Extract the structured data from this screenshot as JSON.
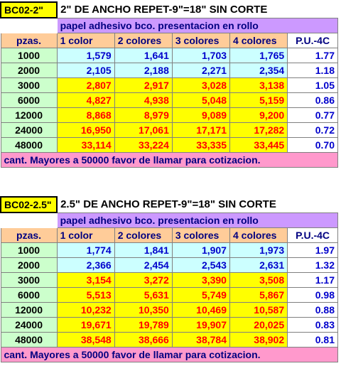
{
  "tables": [
    {
      "code": "BC02-2\"",
      "title": "2\" DE ANCHO REPET-9\"=18\" SIN CORTE",
      "subtitle": "papel adhesivo bco. presentacion en rollo",
      "headers": [
        "pzas.",
        "1  color",
        "2 colores",
        "3 colores",
        "4 colores",
        "P.U.-4C"
      ],
      "rows": [
        {
          "qty": "1000",
          "c1": "1,579",
          "c2": "1,641",
          "c3": "1,703",
          "c4": "1,765",
          "pu": "1.77",
          "tone": "blue"
        },
        {
          "qty": "2000",
          "c1": "2,105",
          "c2": "2,188",
          "c3": "2,271",
          "c4": "2,354",
          "pu": "1.18",
          "tone": "blue"
        },
        {
          "qty": "3000",
          "c1": "2,807",
          "c2": "2,917",
          "c3": "3,028",
          "c4": "3,138",
          "pu": "1.05",
          "tone": "red"
        },
        {
          "qty": "6000",
          "c1": "4,827",
          "c2": "4,938",
          "c3": "5,048",
          "c4": "5,159",
          "pu": "0.86",
          "tone": "red"
        },
        {
          "qty": "12000",
          "c1": "8,868",
          "c2": "8,979",
          "c3": "9,089",
          "c4": "9,200",
          "pu": "0.77",
          "tone": "red"
        },
        {
          "qty": "24000",
          "c1": "16,950",
          "c2": "17,061",
          "c3": "17,171",
          "c4": "17,282",
          "pu": "0.72",
          "tone": "red"
        },
        {
          "qty": "48000",
          "c1": "33,114",
          "c2": "33,224",
          "c3": "33,335",
          "c4": "33,445",
          "pu": "0.70",
          "tone": "red"
        }
      ],
      "footer": "cant. Mayores a 50000 favor de llamar para  cotizacion."
    },
    {
      "code": "BC02-2.5\"",
      "title": "2.5\" DE ANCHO REPET-9\"=18\" SIN CORTE",
      "subtitle": "papel adhesivo bco. presentacion en rollo",
      "headers": [
        "pzas.",
        "1  color",
        "2 colores",
        "3 colores",
        "4 colores",
        "P.U.-4C"
      ],
      "rows": [
        {
          "qty": "1000",
          "c1": "1,774",
          "c2": "1,841",
          "c3": "1,907",
          "c4": "1,973",
          "pu": "1.97",
          "tone": "blue"
        },
        {
          "qty": "2000",
          "c1": "2,366",
          "c2": "2,454",
          "c3": "2,543",
          "c4": "2,631",
          "pu": "1.32",
          "tone": "blue"
        },
        {
          "qty": "3000",
          "c1": "3,154",
          "c2": "3,272",
          "c3": "3,390",
          "c4": "3,508",
          "pu": "1.17",
          "tone": "red"
        },
        {
          "qty": "6000",
          "c1": "5,513",
          "c2": "5,631",
          "c3": "5,749",
          "c4": "5,867",
          "pu": "0.98",
          "tone": "red"
        },
        {
          "qty": "12000",
          "c1": "10,232",
          "c2": "10,350",
          "c3": "10,469",
          "c4": "10,587",
          "pu": "0.88",
          "tone": "red"
        },
        {
          "qty": "24000",
          "c1": "19,671",
          "c2": "19,789",
          "c3": "19,907",
          "c4": "20,025",
          "pu": "0.83",
          "tone": "red"
        },
        {
          "qty": "48000",
          "c1": "38,548",
          "c2": "38,666",
          "c3": "38,784",
          "c4": "38,902",
          "pu": "0.81",
          "tone": "red"
        }
      ],
      "footer": "cant. Mayores a 50000 favor de llamar para  cotizacion."
    }
  ]
}
